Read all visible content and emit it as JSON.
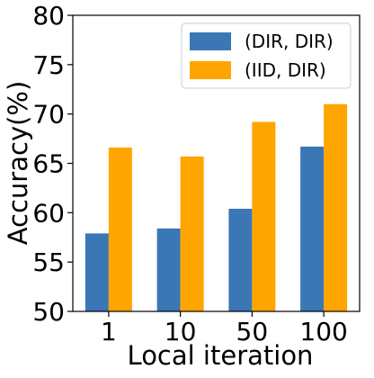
{
  "chart_data": {
    "type": "bar",
    "title": "",
    "xlabel": "Local iteration",
    "ylabel": "Accuracy(%)",
    "categories": [
      "1",
      "10",
      "50",
      "100"
    ],
    "ylim": [
      50,
      80
    ],
    "yticks": [
      "50",
      "55",
      "60",
      "65",
      "70",
      "75",
      "80"
    ],
    "grid": false,
    "legend_position": "top-right",
    "series": [
      {
        "name": "(DIR, DIR)",
        "color": "#3a77b4",
        "values": [
          57.9,
          58.4,
          60.4,
          66.7
        ]
      },
      {
        "name": "(IID, DIR)",
        "color": "#ffa500",
        "values": [
          66.6,
          65.7,
          69.2,
          71.0
        ]
      }
    ]
  }
}
